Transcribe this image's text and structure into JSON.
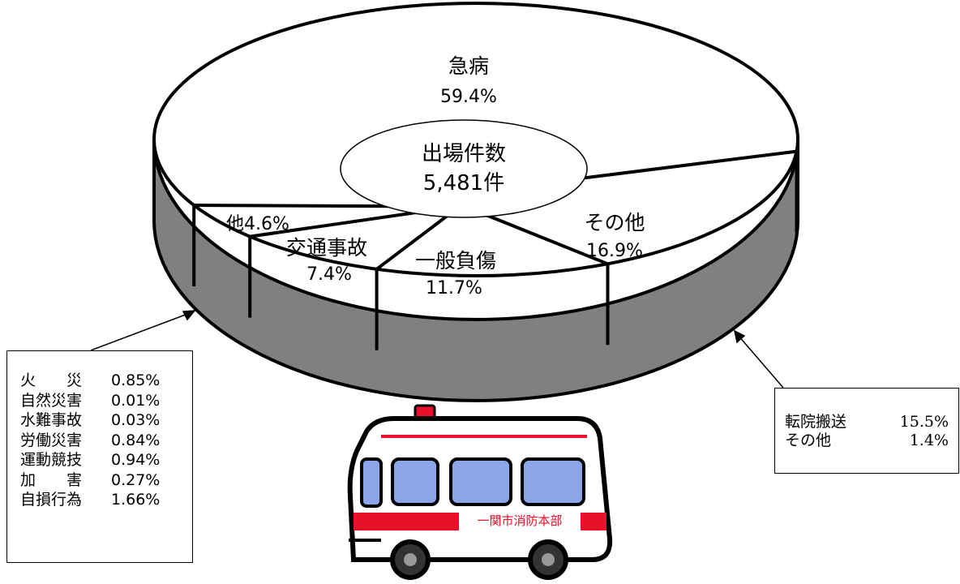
{
  "chart_data": {
    "type": "pie",
    "center_label": {
      "line1": "出場件数",
      "line2": "5,481件"
    },
    "slices": [
      {
        "name": "急病",
        "value": 59.4,
        "value_label": "59.4%"
      },
      {
        "name": "その他",
        "value": 16.9,
        "value_label": "16.9%"
      },
      {
        "name": "一般負傷",
        "value": 11.7,
        "value_label": "11.7%"
      },
      {
        "name": "交通事故",
        "value": 7.4,
        "value_label": "7.4%"
      },
      {
        "name": "他",
        "value": 4.6,
        "value_label": "他4.6%"
      }
    ],
    "colors": {
      "top": "#ffffff",
      "side": "#808080",
      "outline": "#000000"
    }
  },
  "left_callout": {
    "rows": [
      {
        "name": "火　　災",
        "value": "0.85%"
      },
      {
        "name": "自然災害",
        "value": "0.01%"
      },
      {
        "name": "水難事故",
        "value": "0.03%"
      },
      {
        "name": "労働災害",
        "value": "0.84%"
      },
      {
        "name": "運動競技",
        "value": "0.94%"
      },
      {
        "name": "加　　害",
        "value": "0.27%"
      },
      {
        "name": "自損行為",
        "value": "1.66%"
      }
    ]
  },
  "right_callout": {
    "rows": [
      {
        "name": "転院搬送",
        "value": "15.5%"
      },
      {
        "name": "その他",
        "value": "1.4%"
      }
    ]
  },
  "ambulance": {
    "label": "一関市消防本部",
    "body_color": "#ffffff",
    "stripe_color": "#e8102a",
    "window_color": "#8aa6e8"
  }
}
